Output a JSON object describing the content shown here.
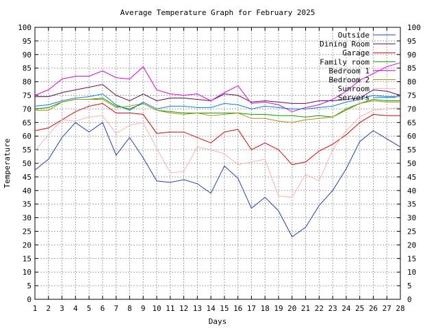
{
  "chart_data": {
    "type": "line",
    "title": "Average Temperature Graph for February 2025",
    "xlabel": "Days",
    "ylabel": "Temperature",
    "xlim": [
      1,
      28
    ],
    "ylim": [
      0,
      100
    ],
    "x_ticks": [
      1,
      2,
      3,
      4,
      5,
      6,
      7,
      8,
      9,
      10,
      11,
      12,
      13,
      14,
      15,
      16,
      17,
      18,
      19,
      20,
      21,
      22,
      23,
      24,
      25,
      26,
      27,
      28
    ],
    "y_ticks": [
      0,
      5,
      10,
      15,
      20,
      25,
      30,
      35,
      40,
      45,
      50,
      55,
      60,
      65,
      70,
      75,
      80,
      85,
      90,
      95,
      100
    ],
    "grid": true,
    "legend_position": "top-right",
    "x": [
      1,
      2,
      3,
      4,
      5,
      6,
      7,
      8,
      9,
      10,
      11,
      12,
      13,
      14,
      15,
      16,
      17,
      18,
      19,
      20,
      21,
      22,
      23,
      24,
      25,
      26,
      27,
      28
    ],
    "series": [
      {
        "name": "Outside",
        "color": "#1f3fbf",
        "values": [
          47.5,
          51.5,
          59.5,
          65.0,
          61.5,
          65.0,
          53.0,
          59.5,
          52.0,
          43.5,
          43.0,
          44.0,
          42.5,
          39.0,
          49.0,
          44.5,
          33.5,
          37.5,
          32.5,
          23.0,
          26.5,
          34.5,
          40.0,
          48.0,
          58.0,
          62.0,
          59.0,
          56.0
        ]
      },
      {
        "name": "Dining Room",
        "color": "#5a0a5a",
        "values": [
          74.5,
          74.5,
          76.0,
          77.0,
          78.0,
          79.0,
          75.0,
          73.0,
          75.5,
          73.0,
          74.0,
          74.0,
          73.5,
          73.0,
          75.5,
          75.0,
          72.5,
          73.0,
          72.5,
          72.0,
          72.0,
          73.0,
          73.0,
          73.5,
          74.0,
          77.0,
          76.5,
          75.0
        ]
      },
      {
        "name": "Garage",
        "color": "#e00000",
        "values": [
          62.0,
          63.0,
          66.0,
          69.0,
          71.0,
          72.0,
          68.5,
          68.5,
          68.0,
          61.0,
          61.5,
          61.5,
          59.5,
          57.5,
          61.5,
          62.5,
          55.0,
          57.5,
          55.0,
          49.5,
          50.5,
          54.5,
          57.0,
          60.5,
          65.0,
          68.0,
          67.5,
          67.5
        ]
      },
      {
        "name": "Family room",
        "color": "#00a000",
        "values": [
          70.0,
          70.5,
          72.5,
          73.5,
          73.5,
          74.0,
          71.0,
          70.0,
          72.0,
          69.5,
          69.0,
          68.5,
          68.5,
          68.5,
          68.5,
          68.5,
          68.0,
          68.0,
          67.5,
          67.5,
          67.0,
          67.5,
          67.0,
          70.0,
          72.0,
          73.5,
          73.0,
          73.0
        ]
      },
      {
        "name": "Bedroom 1",
        "color": "#e000e0",
        "values": [
          75.0,
          77.0,
          81.0,
          82.0,
          82.0,
          84.0,
          81.5,
          81.0,
          85.5,
          77.0,
          75.5,
          75.0,
          75.5,
          73.0,
          76.0,
          78.5,
          72.0,
          72.5,
          71.5,
          69.0,
          70.5,
          71.5,
          73.5,
          76.5,
          80.5,
          83.0,
          85.5,
          87.0
        ]
      },
      {
        "name": "Bedroom 2",
        "color": "#b09000",
        "values": [
          69.5,
          69.5,
          72.5,
          73.5,
          73.5,
          73.5,
          70.5,
          71.0,
          72.0,
          69.5,
          68.5,
          68.0,
          68.5,
          67.5,
          68.0,
          68.5,
          66.5,
          66.5,
          65.5,
          65.0,
          66.0,
          66.5,
          67.0,
          69.5,
          72.0,
          73.0,
          72.5,
          72.5
        ]
      },
      {
        "name": "Sunroom",
        "color": "#ffb0b0",
        "values": [
          54.5,
          60.5,
          66.0,
          65.5,
          67.0,
          67.5,
          61.0,
          64.0,
          65.0,
          55.5,
          46.5,
          47.0,
          56.0,
          55.0,
          53.5,
          49.5,
          50.5,
          51.5,
          38.0,
          37.5,
          46.0,
          43.5,
          55.0,
          62.0,
          67.0,
          69.5,
          70.0,
          70.5
        ]
      },
      {
        "name": "Servers",
        "color": "#0080e0",
        "values": [
          71.0,
          71.5,
          73.0,
          74.0,
          74.5,
          75.5,
          71.5,
          69.5,
          72.5,
          70.0,
          71.0,
          71.0,
          70.5,
          70.5,
          72.0,
          71.5,
          70.0,
          71.0,
          70.5,
          70.0,
          70.0,
          70.5,
          71.0,
          72.5,
          73.5,
          75.0,
          74.5,
          74.5
        ]
      }
    ]
  }
}
